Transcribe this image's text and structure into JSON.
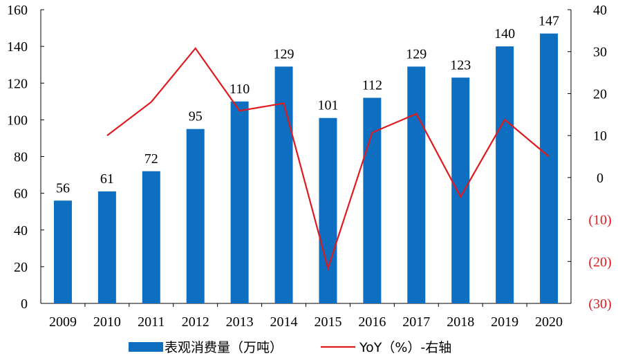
{
  "chart_data": {
    "type": "bar",
    "categories": [
      "2009",
      "2010",
      "2011",
      "2012",
      "2013",
      "2014",
      "2015",
      "2016",
      "2017",
      "2018",
      "2019",
      "2020"
    ],
    "series": [
      {
        "name": "表观消费量（万吨）",
        "type": "bar",
        "axis": "left",
        "color": "#0e6fc0",
        "values": [
          56,
          61,
          72,
          95,
          110,
          129,
          101,
          112,
          129,
          123,
          140,
          147
        ],
        "data_labels": [
          "56",
          "61",
          "72",
          "95",
          "110",
          "129",
          "101",
          "112",
          "129",
          "123",
          "140",
          "147"
        ]
      },
      {
        "name": "YoY（%）-右轴",
        "type": "line",
        "axis": "right",
        "color": "#e0191f",
        "values": [
          null,
          10,
          18,
          30.8,
          15.9,
          17.7,
          -21.6,
          10.7,
          15.2,
          -4.6,
          13.8,
          5
        ]
      }
    ],
    "y_left": {
      "lim": [
        0,
        160
      ],
      "ticks": [
        "0",
        "20",
        "40",
        "60",
        "80",
        "100",
        "120",
        "140",
        "160"
      ]
    },
    "y_right": {
      "lim": [
        -30,
        40
      ],
      "ticks": [
        "(30)",
        "(20)",
        "(10)",
        "0",
        "10",
        "20",
        "30",
        "40"
      ],
      "negative_color": "#e0191f"
    },
    "legend": {
      "position": "bottom"
    },
    "grid": false
  }
}
